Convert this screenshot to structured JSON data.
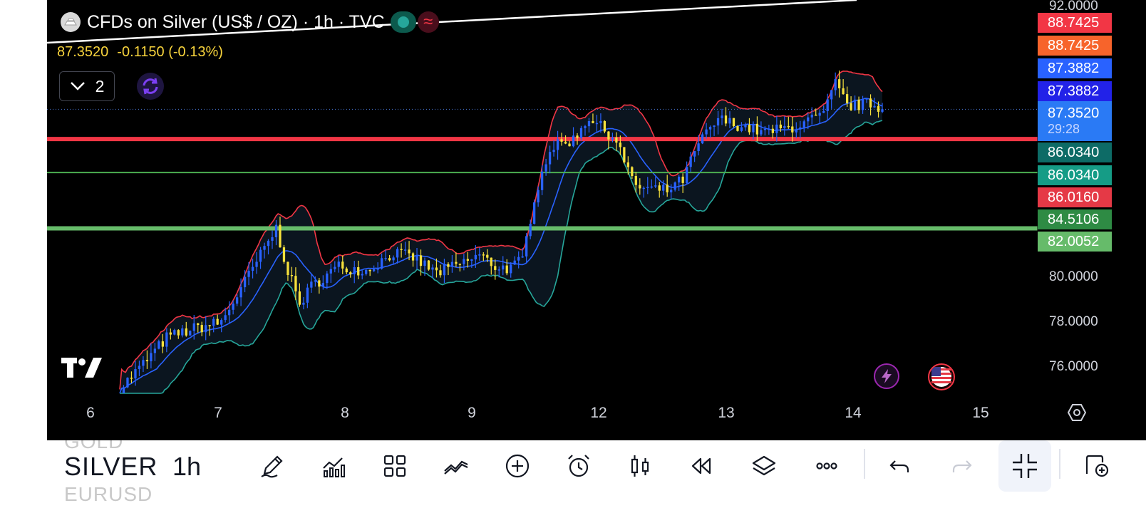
{
  "header": {
    "symbol_title": "CFDs on Silver (US$ / OZ) · 1h · TVC",
    "last_price": "87.3520",
    "change": "-0.1150 (-0.13%)",
    "indicators_count": "2",
    "badge_glyph": "≈"
  },
  "price_tags": [
    {
      "value": "88.7425",
      "color": "#f23645"
    },
    {
      "value": "88.7425",
      "color": "#f7642b"
    },
    {
      "value": "87.3882",
      "color": "#2962ff"
    },
    {
      "value": "87.3882",
      "color": "#2222e8"
    },
    {
      "value": "87.3520",
      "color": "#2a7af5",
      "countdown": "29:28"
    },
    {
      "value": "86.0340",
      "color": "#0d6b66"
    },
    {
      "value": "86.0340",
      "color": "#159c86"
    },
    {
      "value": "86.0160",
      "color": "#e53946"
    },
    {
      "value": "84.5106",
      "color": "#2e8b44"
    },
    {
      "value": "82.0052",
      "color": "#66bb6a"
    }
  ],
  "y_axis": {
    "min": 74.6,
    "max": 92.0,
    "labels": [
      "92.0000",
      "80.0000",
      "78.0000",
      "76.0000"
    ]
  },
  "x_axis": {
    "labels": [
      "6",
      "7",
      "8",
      "9",
      "12",
      "13",
      "14",
      "15"
    ]
  },
  "horizontal_lines": [
    {
      "price": 86.016,
      "color": "#f23645",
      "width": 6
    },
    {
      "price": 84.5106,
      "color": "#4caf50",
      "width": 2
    },
    {
      "price": 82.0052,
      "color": "#66bb6a",
      "width": 6
    }
  ],
  "trendline": {
    "color": "#ffffff"
  },
  "colors": {
    "bull": "#2962ff",
    "bear": "#f7e13c",
    "bb_upper": "#f23645",
    "bb_middle": "#2962ff",
    "bb_lower": "#26a69a",
    "bb_fill": "#0b151f"
  },
  "chart_data": {
    "type": "candlestick",
    "interval": "1h",
    "series": [
      {
        "name": "price",
        "type": "candlestick"
      },
      {
        "name": "bb-upper",
        "type": "line"
      },
      {
        "name": "bb-middle",
        "type": "line"
      },
      {
        "name": "bb-lower",
        "type": "line"
      }
    ],
    "key_points": {
      "start": 74.8,
      "local_high_day8": 82.0,
      "dip_day8": 78.2,
      "breakout_day11": 85.8,
      "high_day12": 87.1,
      "dip_day12": 83.6,
      "high_day14": 88.7,
      "last": 87.352
    }
  },
  "bottom_bar": {
    "symbol_prev": "GOLD",
    "symbol_current": "SILVER",
    "symbol_next": "EURUSD",
    "interval": "1h",
    "tools": [
      "pencil-icon",
      "indicators-chart-icon",
      "grid-icon",
      "trendline-icon",
      "add-icon",
      "alarm-icon",
      "candles-icon",
      "replay-icon",
      "layers-icon",
      "more-icon",
      "undo-icon",
      "redo-icon",
      "fullscreen-exit-icon",
      "add-watchlist-icon"
    ]
  }
}
